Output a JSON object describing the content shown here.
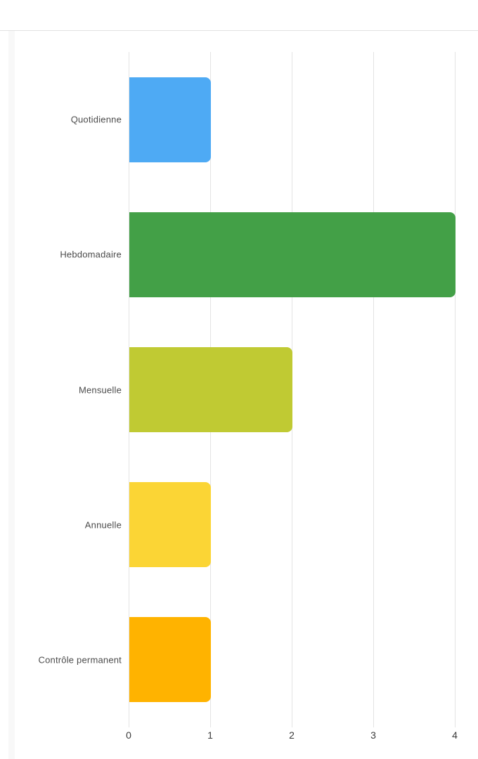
{
  "colors": {
    "background": "#ffffff",
    "separator": "#e2e2e2",
    "panel_edge": "#f8f8f8",
    "grid": "#e3e3e3",
    "category_text": "#4b4b4b",
    "tick_text": "#3a3a3a"
  },
  "chart_data": {
    "type": "bar",
    "orientation": "horizontal",
    "title": "",
    "xlabel": "",
    "ylabel": "",
    "categories": [
      "Quotidienne",
      "Hebdomadaire",
      "Mensuelle",
      "Annuelle",
      "Contrôle permanent"
    ],
    "values": [
      1,
      4,
      2,
      1,
      1
    ],
    "bar_colors": [
      "#4EAAF4",
      "#43A047",
      "#C0CA33",
      "#FBD535",
      "#FFB300"
    ],
    "x_ticks": [
      "0",
      "1",
      "2",
      "3",
      "4"
    ],
    "x_tick_values": [
      0,
      1,
      2,
      3,
      4
    ],
    "xlim": [
      0,
      4
    ],
    "grid": true,
    "legend": "none"
  }
}
